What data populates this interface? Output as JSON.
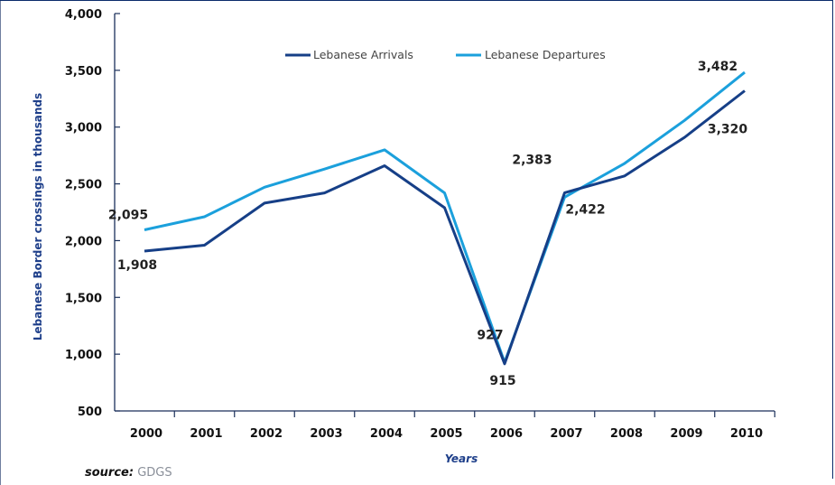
{
  "chart_data": {
    "type": "line",
    "ylabel": "Lebanese Border crossings in thousands",
    "xlabel": "Years",
    "ylim": [
      500,
      4000
    ],
    "yticks": [
      500,
      1000,
      1500,
      2000,
      2500,
      3000,
      3500,
      4000
    ],
    "ytick_labels": [
      "500",
      "1,000",
      "1,500",
      "2,000",
      "2,500",
      "3,000",
      "3,500",
      "4,000"
    ],
    "categories": [
      "2000",
      "2001",
      "2002",
      "2003",
      "2004",
      "2005",
      "2006",
      "2007",
      "2008",
      "2009",
      "2010"
    ],
    "legend_position": "top-center",
    "grid": false,
    "series": [
      {
        "name": "Lebanese Arrivals",
        "color": "#163f87",
        "values": [
          1908,
          1960,
          2330,
          2420,
          2660,
          2290,
          915,
          2422,
          2570,
          2910,
          3320
        ]
      },
      {
        "name": "Lebanese Departures",
        "color": "#1ba0dc",
        "values": [
          2095,
          2210,
          2470,
          2630,
          2800,
          2420,
          927,
          2383,
          2680,
          3060,
          3482
        ]
      }
    ],
    "data_labels": [
      {
        "text": "2,095",
        "series": 1,
        "index": 0
      },
      {
        "text": "1,908",
        "series": 0,
        "index": 0
      },
      {
        "text": "927",
        "series": 1,
        "index": 6
      },
      {
        "text": "915",
        "series": 0,
        "index": 6
      },
      {
        "text": "2,383",
        "series": 1,
        "index": 7
      },
      {
        "text": "2,422",
        "series": 0,
        "index": 7
      },
      {
        "text": "3,482",
        "series": 1,
        "index": 10
      },
      {
        "text": "3,320",
        "series": 0,
        "index": 10
      }
    ]
  },
  "source": {
    "label": "source:",
    "value": "GDGS"
  }
}
